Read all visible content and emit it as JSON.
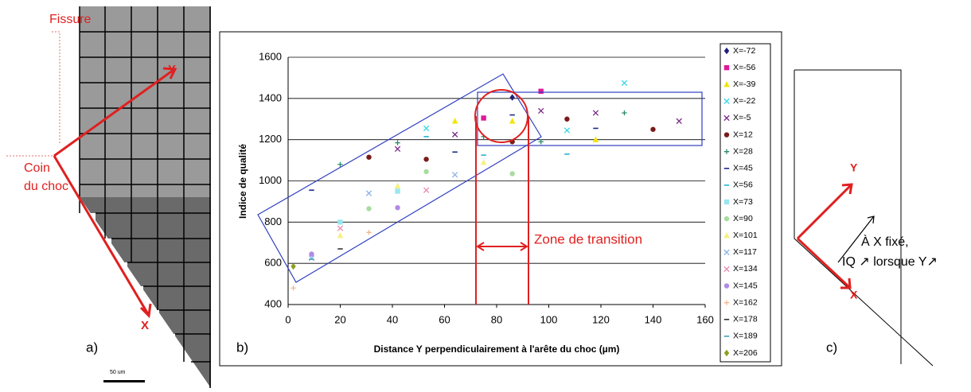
{
  "panel_a": {
    "label": "a)",
    "crack": "Fissure",
    "corner": [
      "Coin",
      "du choc"
    ],
    "axis_y": "Y",
    "axis_x": "X",
    "scale_bar": "50 um"
  },
  "chart_data": {
    "type": "scatter",
    "panel_label": "b)",
    "xlabel": "Distance Y perpendiculairement à l'arête du choc (µm)",
    "ylabel": "Indice de qualité",
    "annotation": "Zone de transition",
    "xlim": [
      0,
      160
    ],
    "ylim": [
      400,
      1600
    ],
    "xticks": [
      0,
      20,
      40,
      60,
      80,
      100,
      120,
      140,
      160
    ],
    "yticks": [
      400,
      600,
      800,
      1000,
      1200,
      1400,
      1600
    ],
    "grid": "y",
    "legend": "right",
    "series": [
      {
        "name": "X=-72",
        "color": "#1f1f7a",
        "marker": "diamond",
        "x": [
          86
        ],
        "values": [
          1405
        ]
      },
      {
        "name": "X=-56",
        "color": "#e0189a",
        "marker": "square",
        "x": [
          75,
          97
        ],
        "values": [
          1305,
          1435
        ]
      },
      {
        "name": "X=-39",
        "color": "#f2e600",
        "marker": "triangle",
        "x": [
          64,
          86,
          118
        ],
        "values": [
          1290,
          1290,
          1200
        ]
      },
      {
        "name": "X=-22",
        "color": "#33d6e6",
        "marker": "x",
        "x": [
          53,
          107,
          129
        ],
        "values": [
          1255,
          1245,
          1475
        ]
      },
      {
        "name": "X=-5",
        "color": "#7a2a8a",
        "marker": "x",
        "x": [
          42,
          64,
          97,
          118,
          150
        ],
        "values": [
          1155,
          1225,
          1340,
          1330,
          1290
        ]
      },
      {
        "name": "X=12",
        "color": "#7a1a1a",
        "marker": "circle",
        "x": [
          31,
          53,
          86,
          107,
          140
        ],
        "values": [
          1115,
          1105,
          1190,
          1300,
          1250
        ]
      },
      {
        "name": "X=28",
        "color": "#2a8a6a",
        "marker": "plus",
        "x": [
          20,
          42,
          75,
          97,
          129
        ],
        "values": [
          1080,
          1185,
          1215,
          1190,
          1330
        ]
      },
      {
        "name": "X=45",
        "color": "#1a2a8a",
        "marker": "dash",
        "x": [
          9,
          64,
          86,
          118
        ],
        "values": [
          955,
          1140,
          1320,
          1255
        ]
      },
      {
        "name": "X=56",
        "color": "#2ab0d0",
        "marker": "dash",
        "x": [
          53,
          75,
          107
        ],
        "values": [
          1215,
          1125,
          1130
        ]
      },
      {
        "name": "X=73",
        "color": "#9ae6f0",
        "marker": "square",
        "x": [
          20,
          42
        ],
        "values": [
          800,
          950
        ]
      },
      {
        "name": "X=90",
        "color": "#a8dca0",
        "marker": "circle",
        "x": [
          31,
          53,
          86
        ],
        "values": [
          865,
          1045,
          1035
        ]
      },
      {
        "name": "X=101",
        "color": "#f5f080",
        "marker": "triangle",
        "x": [
          20,
          42,
          75
        ],
        "values": [
          735,
          975,
          1090
        ]
      },
      {
        "name": "X=117",
        "color": "#8ab0e6",
        "marker": "x",
        "x": [
          9,
          31,
          64
        ],
        "values": [
          625,
          940,
          1030
        ]
      },
      {
        "name": "X=134",
        "color": "#e68ab0",
        "marker": "x",
        "x": [
          20,
          53
        ],
        "values": [
          770,
          955
        ]
      },
      {
        "name": "X=145",
        "color": "#b08ae6",
        "marker": "circle",
        "x": [
          9,
          42
        ],
        "values": [
          645,
          870
        ]
      },
      {
        "name": "X=162",
        "color": "#f0b890",
        "marker": "plus",
        "x": [
          2,
          31
        ],
        "values": [
          480,
          750
        ]
      },
      {
        "name": "X=178",
        "color": "#333333",
        "marker": "dash",
        "x": [
          20
        ],
        "values": [
          670
        ]
      },
      {
        "name": "X=189",
        "color": "#40a0b0",
        "marker": "dash",
        "x": [
          9
        ],
        "values": [
          620
        ]
      },
      {
        "name": "X=206",
        "color": "#8aa020",
        "marker": "diamond",
        "x": [
          2
        ],
        "values": [
          585
        ]
      }
    ]
  },
  "panel_c": {
    "label": "c)",
    "axis_y": "Y",
    "axis_x": "X",
    "note": [
      "À X fixé,",
      "IQ ↗ lorsque Y↗"
    ]
  }
}
